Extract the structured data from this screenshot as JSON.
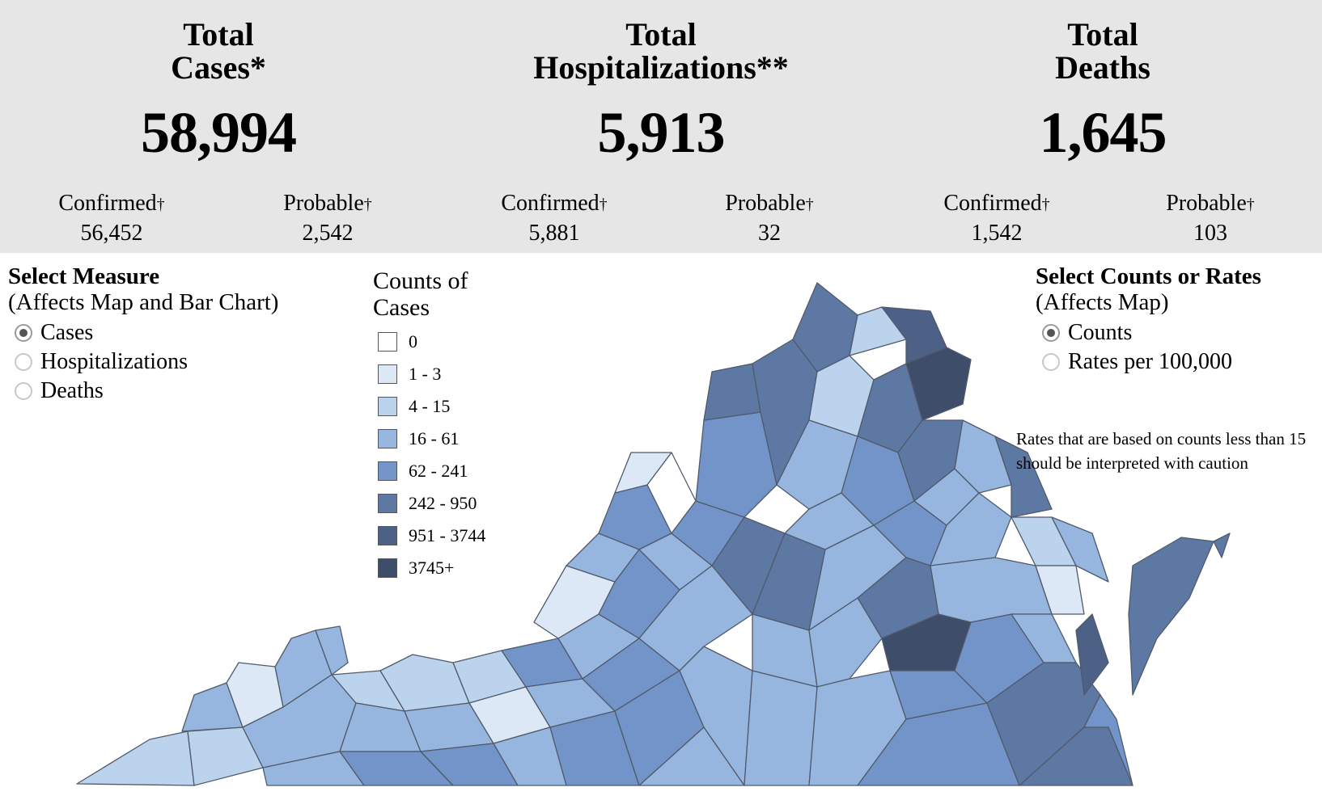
{
  "totals": [
    {
      "label_line1": "Total",
      "label_line2": "Cases*",
      "value": "58,994",
      "confirmed_label": "Confirmed",
      "confirmed_value": "56,452",
      "probable_label": "Probable",
      "probable_value": "2,542"
    },
    {
      "label_line1": "Total",
      "label_line2": "Hospitalizations**",
      "value": "5,913",
      "confirmed_label": "Confirmed",
      "confirmed_value": "5,881",
      "probable_label": "Probable",
      "probable_value": "32"
    },
    {
      "label_line1": "Total",
      "label_line2": "Deaths",
      "value": "1,645",
      "confirmed_label": "Confirmed",
      "confirmed_value": "1,542",
      "probable_label": "Probable",
      "probable_value": "103"
    }
  ],
  "dagger": "†",
  "measure": {
    "title": "Select Measure",
    "subtitle": "(Affects Map and Bar Chart)",
    "options": [
      "Cases",
      "Hospitalizations",
      "Deaths"
    ],
    "selected": "Cases"
  },
  "legend": {
    "title_line1": "Counts of",
    "title_line2": "Cases",
    "items": [
      {
        "label": "0",
        "color": "#ffffff"
      },
      {
        "label": "1 - 3",
        "color": "#dce8f6"
      },
      {
        "label": "4 - 15",
        "color": "#bcd3ee"
      },
      {
        "label": "16 - 61",
        "color": "#96b6e0"
      },
      {
        "label": "62 - 241",
        "color": "#7294c8"
      },
      {
        "label": "242 - 950",
        "color": "#5e78a4"
      },
      {
        "label": "951 - 3744",
        "color": "#4d6186"
      },
      {
        "label": "3745+",
        "color": "#3e4d69"
      }
    ]
  },
  "mode": {
    "title": "Select Counts or Rates",
    "subtitle": "(Affects Map)",
    "options": [
      "Counts",
      "Rates per 100,000"
    ],
    "selected": "Counts"
  },
  "note": "Rates that are based on counts less than 15 should be interpreted with caution",
  "map": {
    "name": "virginia-county-map"
  }
}
